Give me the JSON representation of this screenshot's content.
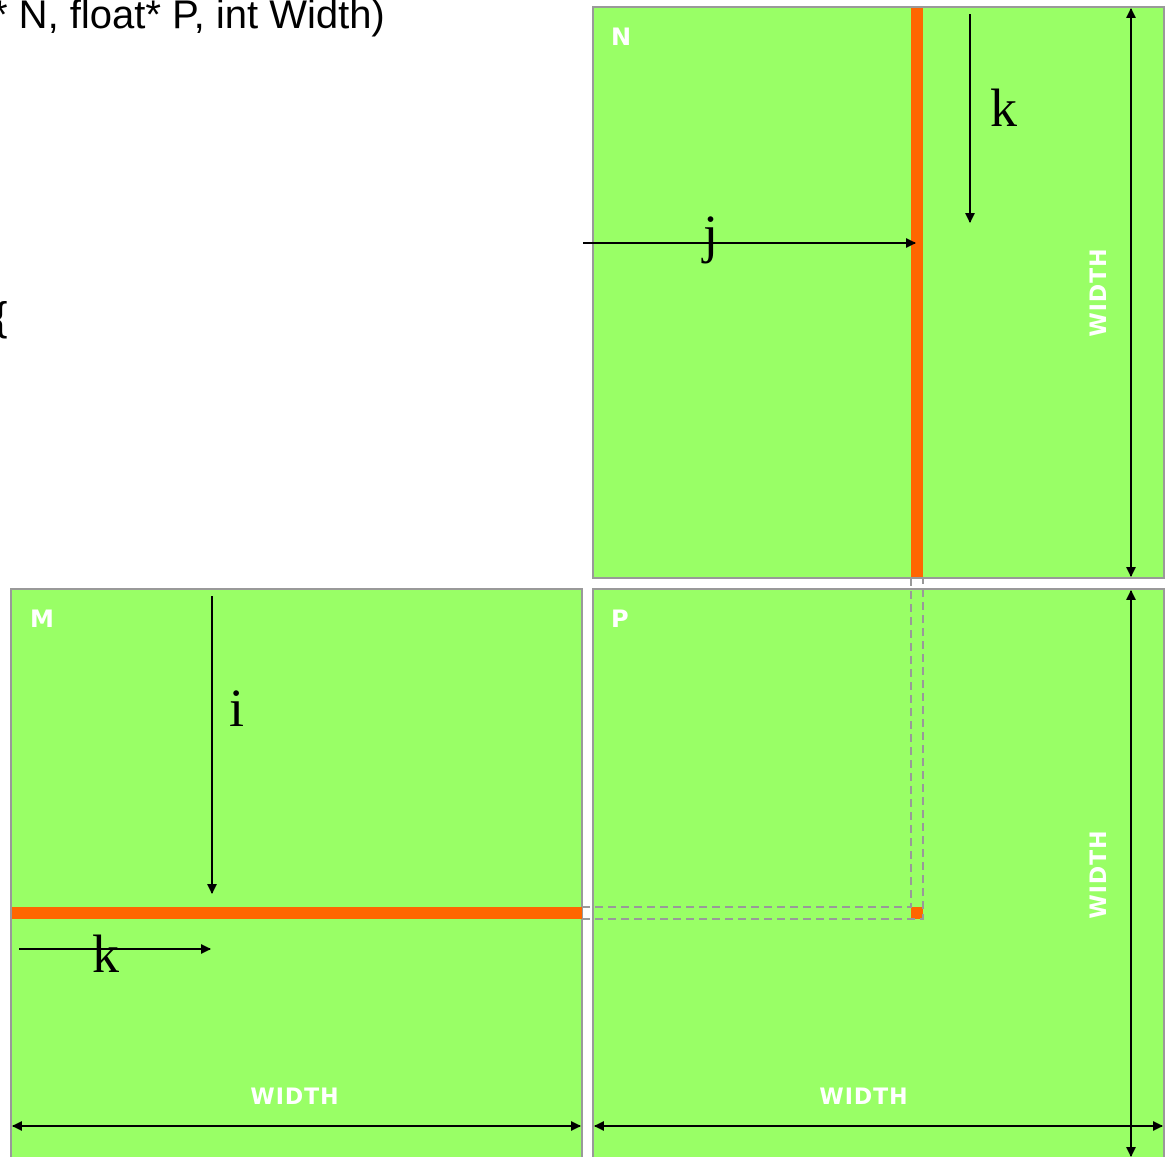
{
  "code": {
    "signature_fragment": "* N, float* P, int Width)",
    "brace": "{"
  },
  "matrices": {
    "n": {
      "label": "N",
      "dimension_label": "WIDTH"
    },
    "m": {
      "label": "M",
      "dimension_label": "WIDTH"
    },
    "p": {
      "label": "P",
      "width_label": "WIDTH",
      "height_label": "WIDTH"
    }
  },
  "indices": {
    "k_in_n": "k",
    "j": "j",
    "i": "i",
    "k_in_m": "k"
  },
  "colors": {
    "matrix_fill": "#99ff66",
    "highlight": "#ff6600",
    "border": "#999999"
  }
}
